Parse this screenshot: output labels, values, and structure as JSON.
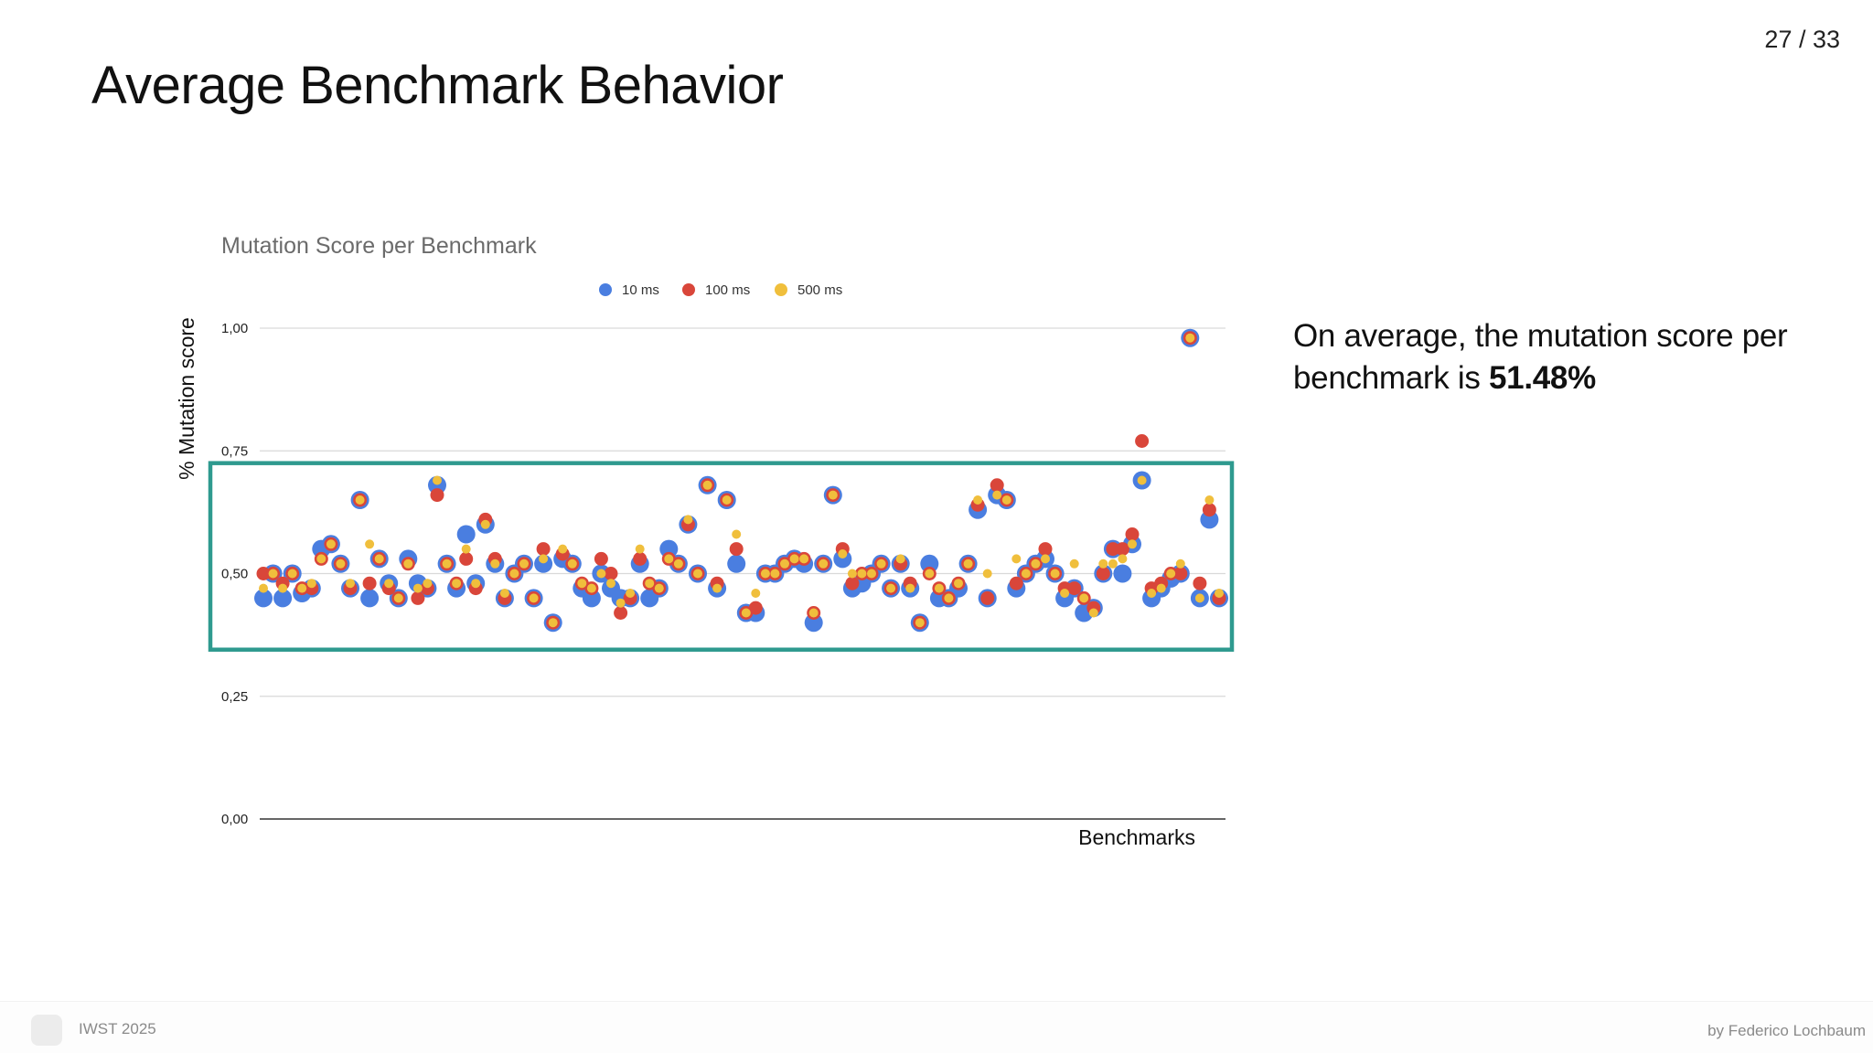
{
  "slide": {
    "page_number": "27 / 33",
    "title": "Average Benchmark Behavior",
    "callout_prefix": "On average, the mutation score per benchmark is",
    "callout_value": "51.48%"
  },
  "footer": {
    "conference": "IWST 2025",
    "author": "by Federico Lochbaum"
  },
  "colors": {
    "series_10ms": "#4a7ee0",
    "series_100ms": "#d9463a",
    "series_500ms": "#f0bf3c",
    "highlight_box": "#2f9a8f",
    "gridline": "#d9d9d9"
  },
  "chart_data": {
    "type": "scatter",
    "title": "Mutation Score per Benchmark",
    "ylabel": "% Mutation score",
    "xlabel": "Benchmarks",
    "ylim": [
      0,
      1
    ],
    "y_ticks": [
      "0,00",
      "0,25",
      "0,50",
      "0,75",
      "1,00"
    ],
    "grid": true,
    "legend_position": "top-center",
    "x_count": 100,
    "highlight_range": [
      0.345,
      0.725
    ],
    "series": [
      {
        "name": "10 ms",
        "values": [
          0.45,
          0.5,
          0.45,
          0.5,
          0.46,
          0.47,
          0.55,
          0.56,
          0.52,
          0.47,
          0.65,
          0.45,
          0.53,
          0.48,
          0.45,
          0.53,
          0.48,
          0.47,
          0.68,
          0.52,
          0.47,
          0.58,
          0.48,
          0.6,
          0.52,
          0.45,
          0.5,
          0.52,
          0.45,
          0.52,
          0.4,
          0.53,
          0.52,
          0.47,
          0.45,
          0.5,
          0.47,
          0.45,
          0.45,
          0.52,
          0.45,
          0.47,
          0.55,
          0.52,
          0.6,
          0.5,
          0.68,
          0.47,
          0.65,
          0.52,
          0.42,
          0.42,
          0.5,
          0.5,
          0.52,
          0.53,
          0.52,
          0.4,
          0.52,
          0.66,
          0.53,
          0.47,
          0.48,
          0.5,
          0.52,
          0.47,
          0.52,
          0.47,
          0.4,
          0.52,
          0.45,
          0.45,
          0.47,
          0.52,
          0.63,
          0.45,
          0.66,
          0.65,
          0.47,
          0.5,
          0.52,
          0.53,
          0.5,
          0.45,
          0.47,
          0.42,
          0.43,
          0.5,
          0.55,
          0.5,
          0.56,
          0.69,
          0.45,
          0.47,
          0.49,
          0.5,
          0.98,
          0.45,
          0.61,
          0.45
        ]
      },
      {
        "name": "100 ms",
        "values": [
          0.5,
          0.5,
          0.48,
          0.5,
          0.47,
          0.47,
          0.53,
          0.56,
          0.52,
          0.47,
          0.65,
          0.48,
          0.53,
          0.47,
          0.45,
          0.52,
          0.45,
          0.47,
          0.66,
          0.52,
          0.48,
          0.53,
          0.47,
          0.61,
          0.53,
          0.45,
          0.5,
          0.52,
          0.45,
          0.55,
          0.4,
          0.54,
          0.52,
          0.48,
          0.47,
          0.53,
          0.5,
          0.42,
          0.45,
          0.53,
          0.48,
          0.47,
          0.53,
          0.52,
          0.6,
          0.5,
          0.68,
          0.48,
          0.65,
          0.55,
          0.42,
          0.43,
          0.5,
          0.5,
          0.52,
          0.53,
          0.53,
          0.42,
          0.52,
          0.66,
          0.55,
          0.48,
          0.5,
          0.5,
          0.52,
          0.47,
          0.52,
          0.48,
          0.4,
          0.5,
          0.47,
          0.45,
          0.48,
          0.52,
          0.64,
          0.45,
          0.68,
          0.65,
          0.48,
          0.5,
          0.52,
          0.55,
          0.5,
          0.47,
          0.47,
          0.45,
          0.43,
          0.5,
          0.55,
          0.55,
          0.58,
          0.77,
          0.47,
          0.48,
          0.5,
          0.5,
          0.98,
          0.48,
          0.63,
          0.45
        ]
      },
      {
        "name": "500 ms",
        "values": [
          0.47,
          0.5,
          0.47,
          0.5,
          0.47,
          0.48,
          0.53,
          0.56,
          0.52,
          0.48,
          0.65,
          0.56,
          0.53,
          0.48,
          0.45,
          0.52,
          0.47,
          0.48,
          0.69,
          0.52,
          0.48,
          0.55,
          0.48,
          0.6,
          0.52,
          0.46,
          0.5,
          0.52,
          0.45,
          0.53,
          0.4,
          0.55,
          0.52,
          0.48,
          0.47,
          0.5,
          0.48,
          0.44,
          0.46,
          0.55,
          0.48,
          0.47,
          0.53,
          0.52,
          0.61,
          0.5,
          0.68,
          0.47,
          0.65,
          0.58,
          0.42,
          0.46,
          0.5,
          0.5,
          0.52,
          0.53,
          0.53,
          0.42,
          0.52,
          0.66,
          0.54,
          0.5,
          0.5,
          0.5,
          0.52,
          0.47,
          0.53,
          0.47,
          0.4,
          0.5,
          0.47,
          0.45,
          0.48,
          0.52,
          0.65,
          0.5,
          0.66,
          0.65,
          0.53,
          0.5,
          0.52,
          0.53,
          0.5,
          0.46,
          0.52,
          0.45,
          0.42,
          0.52,
          0.52,
          0.53,
          0.56,
          0.69,
          0.46,
          0.47,
          0.5,
          0.52,
          0.98,
          0.45,
          0.65,
          0.46
        ]
      }
    ]
  }
}
